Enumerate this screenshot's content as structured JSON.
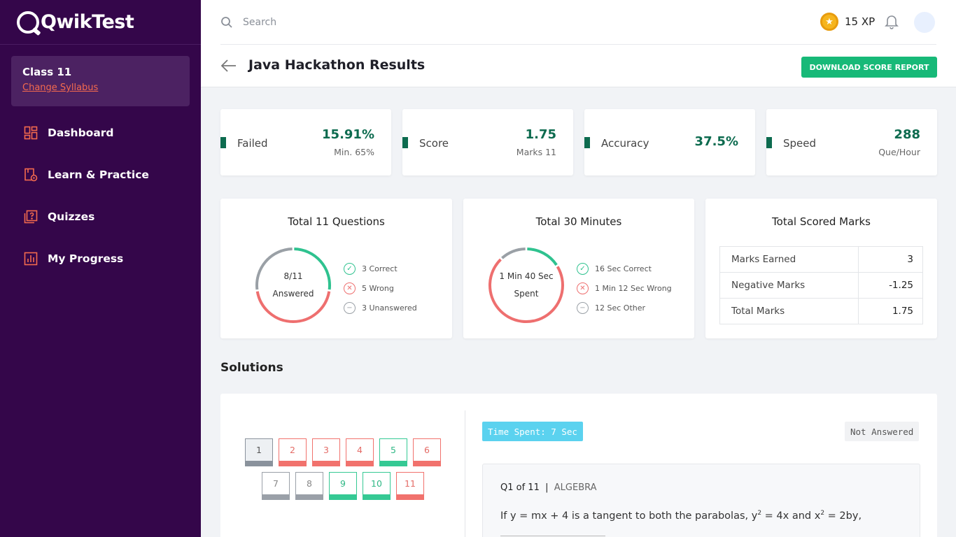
{
  "app": {
    "logo_text": "QwikTest"
  },
  "sidebar": {
    "class_name": "Class 11",
    "change_syllabus": "Change Syllabus",
    "items": [
      {
        "label": "Dashboard",
        "icon": "dashboard-icon"
      },
      {
        "label": "Learn & Practice",
        "icon": "learn-icon"
      },
      {
        "label": "Quizzes",
        "icon": "quiz-icon"
      },
      {
        "label": "My Progress",
        "icon": "progress-icon"
      }
    ]
  },
  "header": {
    "search_placeholder": "Search",
    "xp": "15 XP",
    "page_title": "Java Hackathon Results",
    "download_label": "DOWNLOAD SCORE REPORT"
  },
  "stats": [
    {
      "label": "Failed",
      "value": "15.91%",
      "sub": "Min. 65%"
    },
    {
      "label": "Score",
      "value": "1.75",
      "sub": "Marks 11"
    },
    {
      "label": "Accuracy",
      "value": "37.5%",
      "sub": ""
    },
    {
      "label": "Speed",
      "value": "288",
      "sub": "Que/Hour"
    }
  ],
  "questions_panel": {
    "title": "Total 11 Questions",
    "center_value": "8/11",
    "center_label": "Answered",
    "legend": [
      "3 Correct",
      "5 Wrong",
      "3 Unanswered"
    ],
    "breakdown": {
      "correct": 3,
      "wrong": 5,
      "unanswered": 3
    }
  },
  "time_panel": {
    "title": "Total 30 Minutes",
    "center_value": "1 Min 40 Sec",
    "center_label": "Spent",
    "legend": [
      "16 Sec Correct",
      "1 Min 12 Sec Wrong",
      "12 Sec Other"
    ],
    "breakdown_sec": {
      "correct": 16,
      "wrong": 72,
      "other": 12
    }
  },
  "marks_panel": {
    "title": "Total Scored Marks",
    "rows": [
      {
        "label": "Marks Earned",
        "value": "3"
      },
      {
        "label": "Negative Marks",
        "value": "-1.25"
      },
      {
        "label": "Total Marks",
        "value": "1.75"
      }
    ]
  },
  "solutions": {
    "title": "Solutions",
    "questions": [
      {
        "n": "1",
        "status": "current"
      },
      {
        "n": "2",
        "status": "wrong"
      },
      {
        "n": "3",
        "status": "wrong"
      },
      {
        "n": "4",
        "status": "wrong"
      },
      {
        "n": "5",
        "status": "correct"
      },
      {
        "n": "6",
        "status": "wrong"
      },
      {
        "n": "7",
        "status": "unanswered"
      },
      {
        "n": "8",
        "status": "unanswered"
      },
      {
        "n": "9",
        "status": "correct"
      },
      {
        "n": "10",
        "status": "correct"
      },
      {
        "n": "11",
        "status": "wrong"
      }
    ],
    "time_spent": "Time Spent: 7 Sec",
    "answer_status": "Not Answered",
    "question_number": "Q1 of 11",
    "subject": "ALGEBRA",
    "question_text_a": "If y = mx + 4 is a tangent to both the parabolas, y",
    "sup1": "2",
    "question_text_b": " = 4x and x",
    "sup2": "2",
    "question_text_c": " = 2by,"
  },
  "colors": {
    "sidebar_bg": "#34064a",
    "accent_orange": "#f46a4e",
    "stat_green": "#0d6b4f",
    "button_green": "#17b978",
    "correct": "#2fc28f",
    "wrong": "#ee6f6f",
    "unanswered": "#9aa0a6",
    "time_badge": "#5bd2ef"
  }
}
